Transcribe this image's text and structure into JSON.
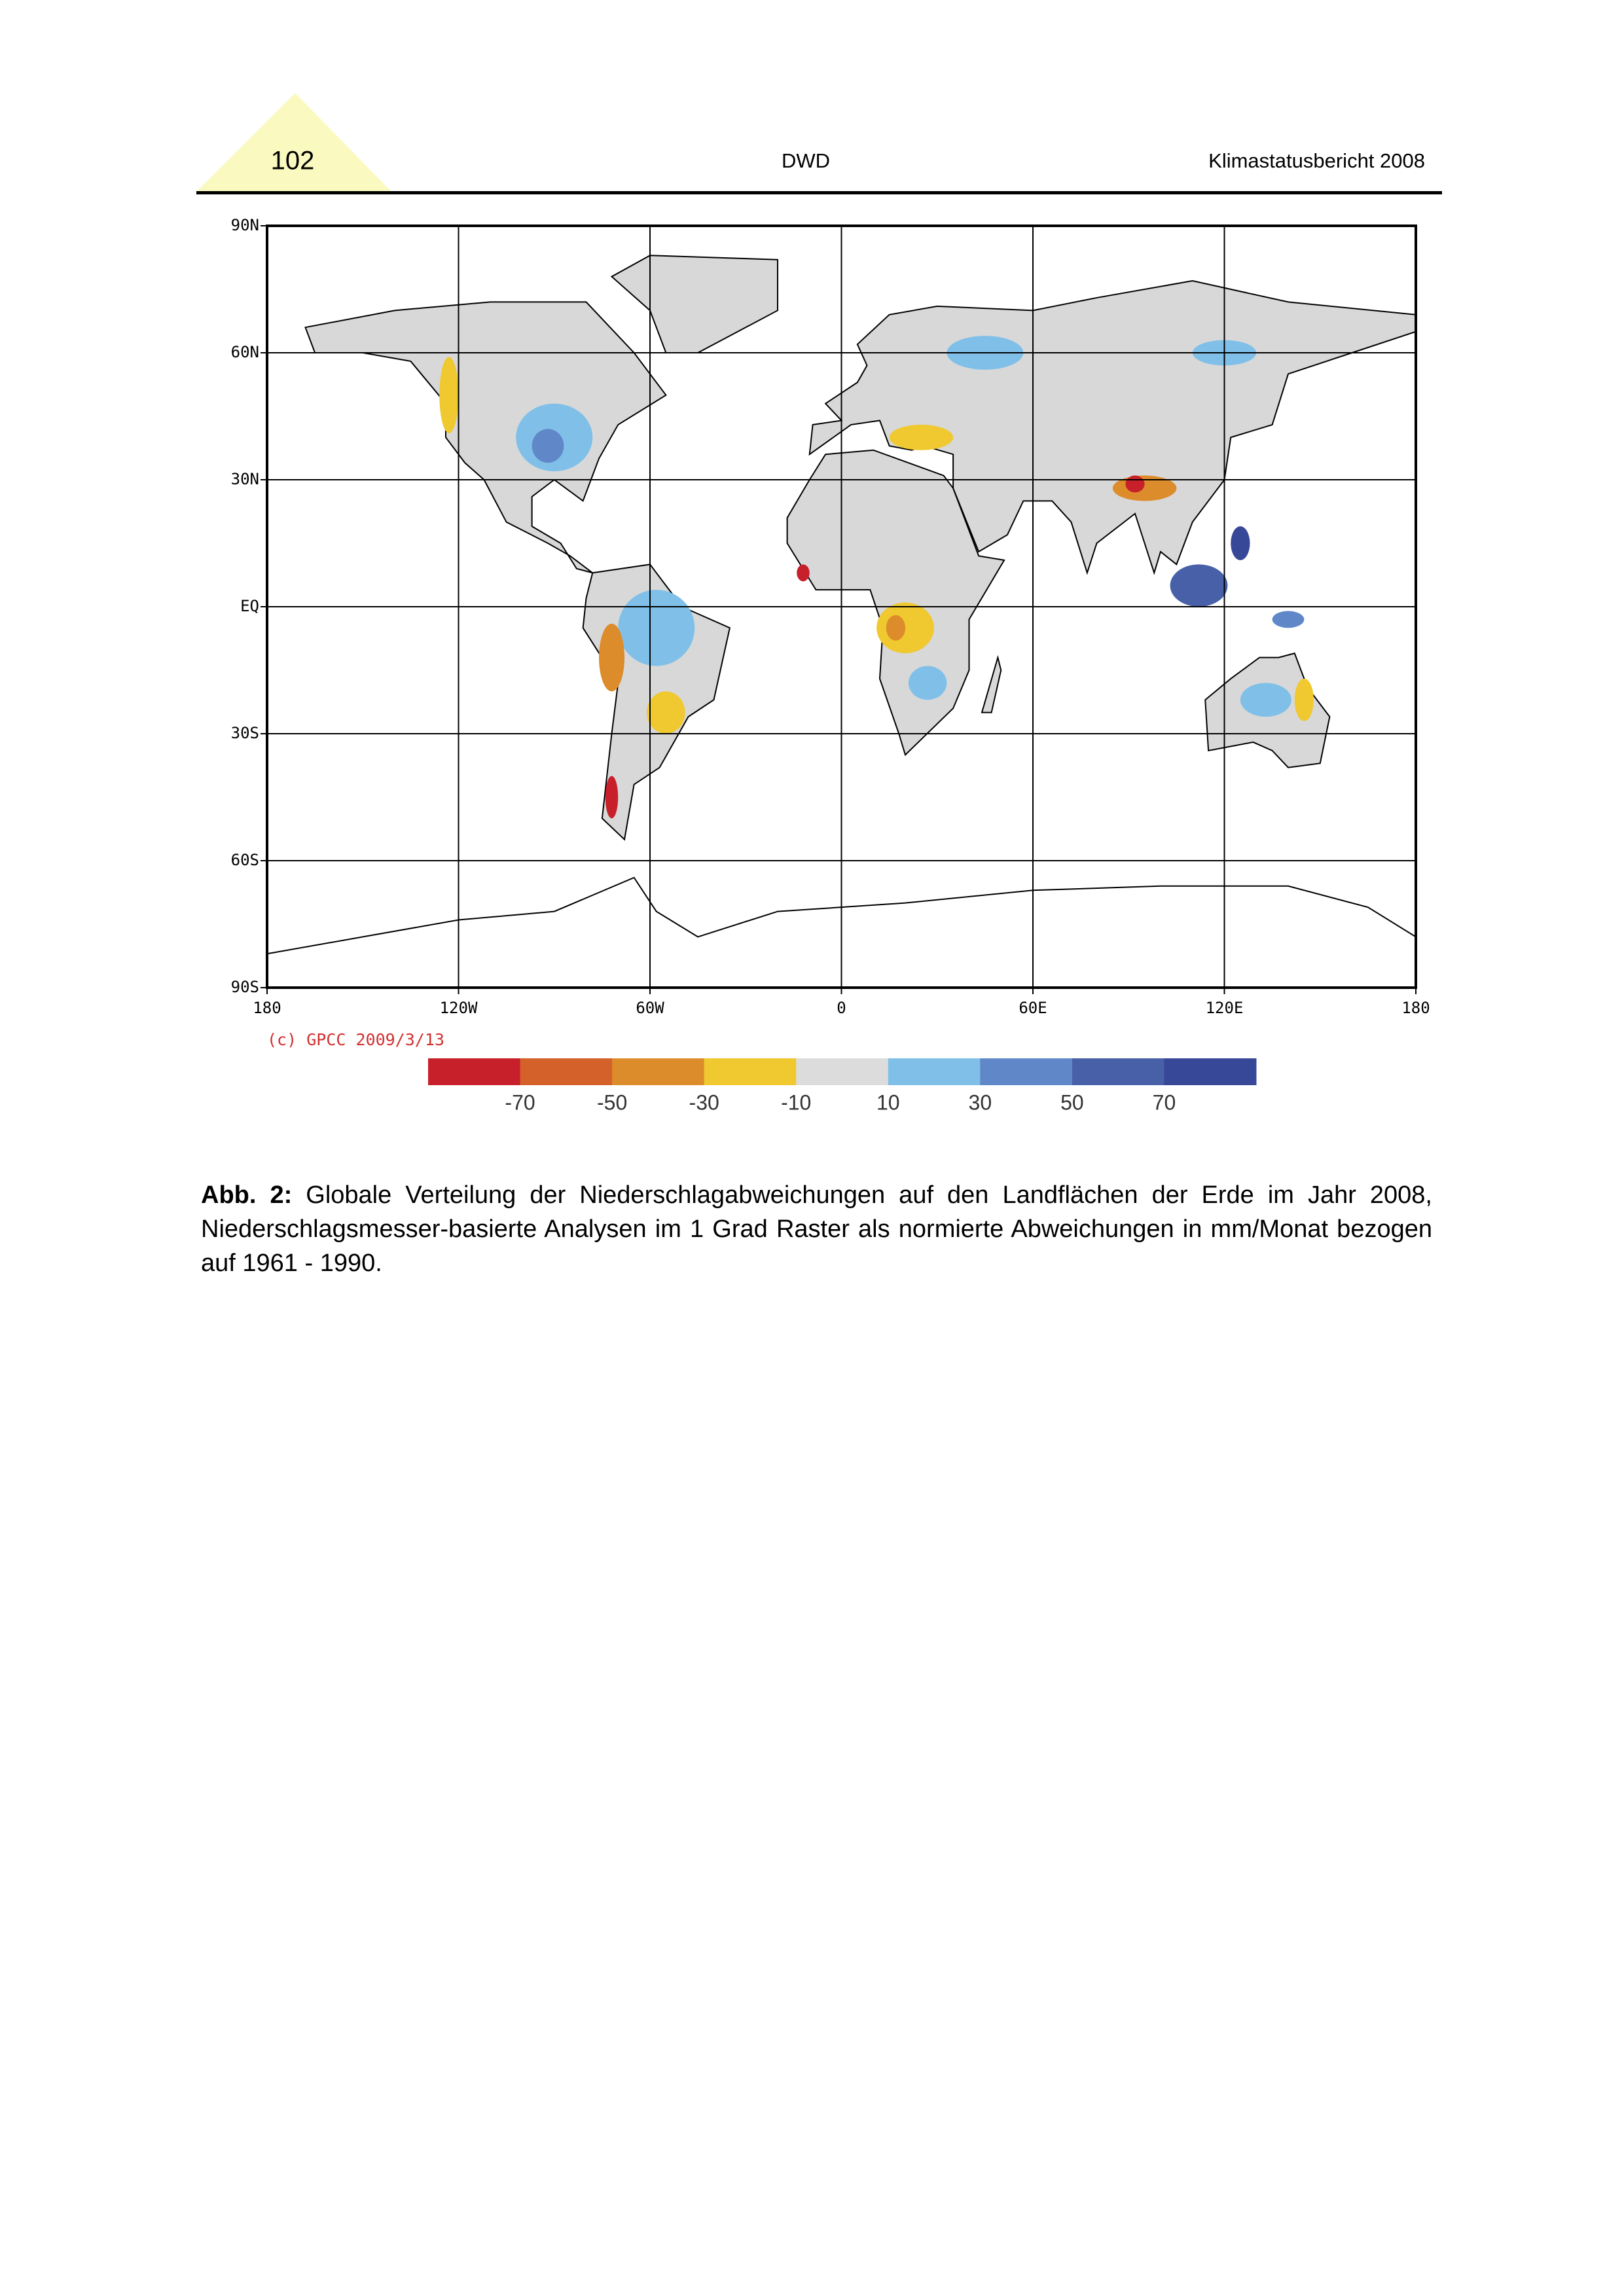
{
  "header": {
    "page_number": "102",
    "publisher": "DWD",
    "report_title": "Klimastatusbericht 2008"
  },
  "figure": {
    "lat_labels": [
      "90N",
      "60N",
      "30N",
      "EQ",
      "30S",
      "60S",
      "90S"
    ],
    "lon_labels": [
      "180",
      "120W",
      "60W",
      "0",
      "60E",
      "120E",
      "180"
    ],
    "credit": "(c) GPCC 2009/3/13",
    "colorbar": {
      "colors": [
        "#c8202a",
        "#d4602a",
        "#dc8c2a",
        "#f0c830",
        "#dcdcdc",
        "#80c0e8",
        "#6088c8",
        "#4860a8",
        "#384898"
      ],
      "labels": [
        "-70",
        "-50",
        "-30",
        "-10",
        "10",
        "30",
        "50",
        "70"
      ]
    }
  },
  "caption": {
    "label": "Abb. 2:",
    "text": "Globale Verteilung der Niederschlagabweichungen auf den Landflächen der Erde im Jahr 2008, Niederschlagsmesser-basierte Analysen im 1 Grad Raster als normierte Abweichungen in mm/Monat bezogen auf 1961 - 1990."
  }
}
